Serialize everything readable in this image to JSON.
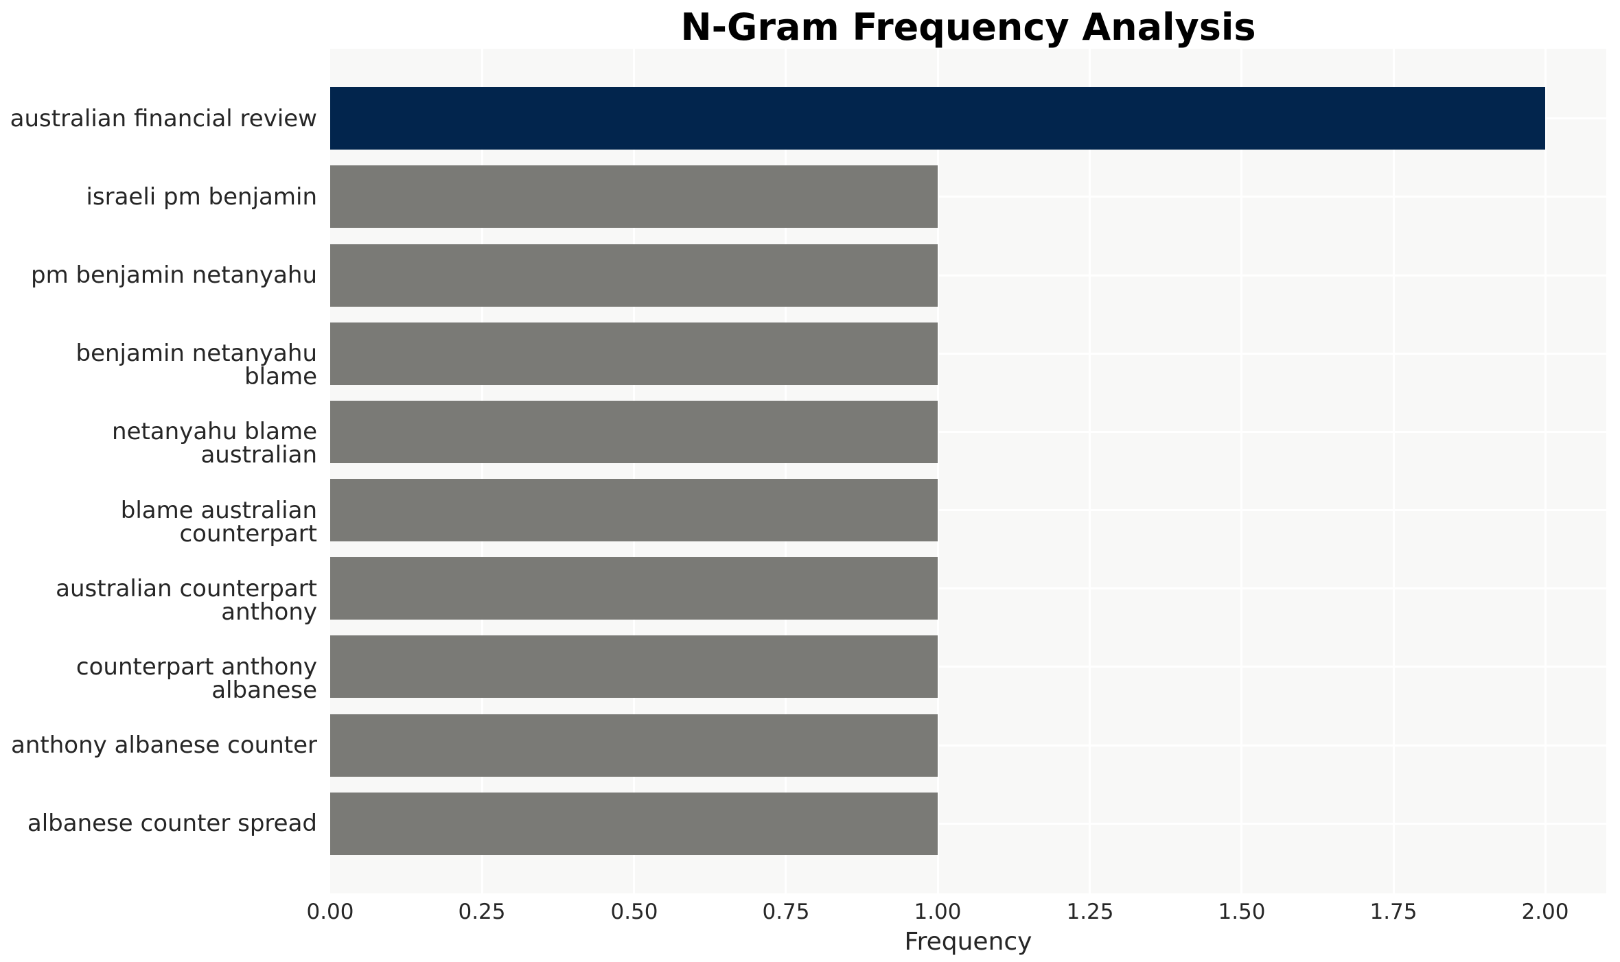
{
  "title": "N-Gram Frequency Analysis",
  "chart_data": {
    "type": "bar",
    "orientation": "horizontal",
    "title": "N-Gram Frequency Analysis",
    "categories": [
      "australian financial review",
      "israeli pm benjamin",
      "pm benjamin netanyahu",
      "benjamin netanyahu blame",
      "netanyahu blame australian",
      "blame australian counterpart",
      "australian counterpart anthony",
      "counterpart anthony albanese",
      "anthony albanese counter",
      "albanese counter spread"
    ],
    "values": [
      2,
      1,
      1,
      1,
      1,
      1,
      1,
      1,
      1,
      1
    ],
    "highlight_index": 0,
    "xlabel": "Frequency",
    "ylabel": "",
    "xlim": [
      0,
      2.1
    ],
    "xtick_values": [
      0.0,
      0.25,
      0.5,
      0.75,
      1.0,
      1.25,
      1.5,
      1.75,
      2.0
    ],
    "xtick_labels": [
      "0.00",
      "0.25",
      "0.50",
      "0.75",
      "1.00",
      "1.25",
      "1.50",
      "1.75",
      "2.00"
    ],
    "grid": true,
    "legend_position": "none",
    "colors": {
      "highlight_bar": "#02254d",
      "default_bar": "#7a7a76",
      "plot_background": "#f8f8f7",
      "gridline": "#ffffff",
      "label_text": "#262626",
      "title_text": "#000000",
      "figure_background": "#ffffff"
    }
  }
}
